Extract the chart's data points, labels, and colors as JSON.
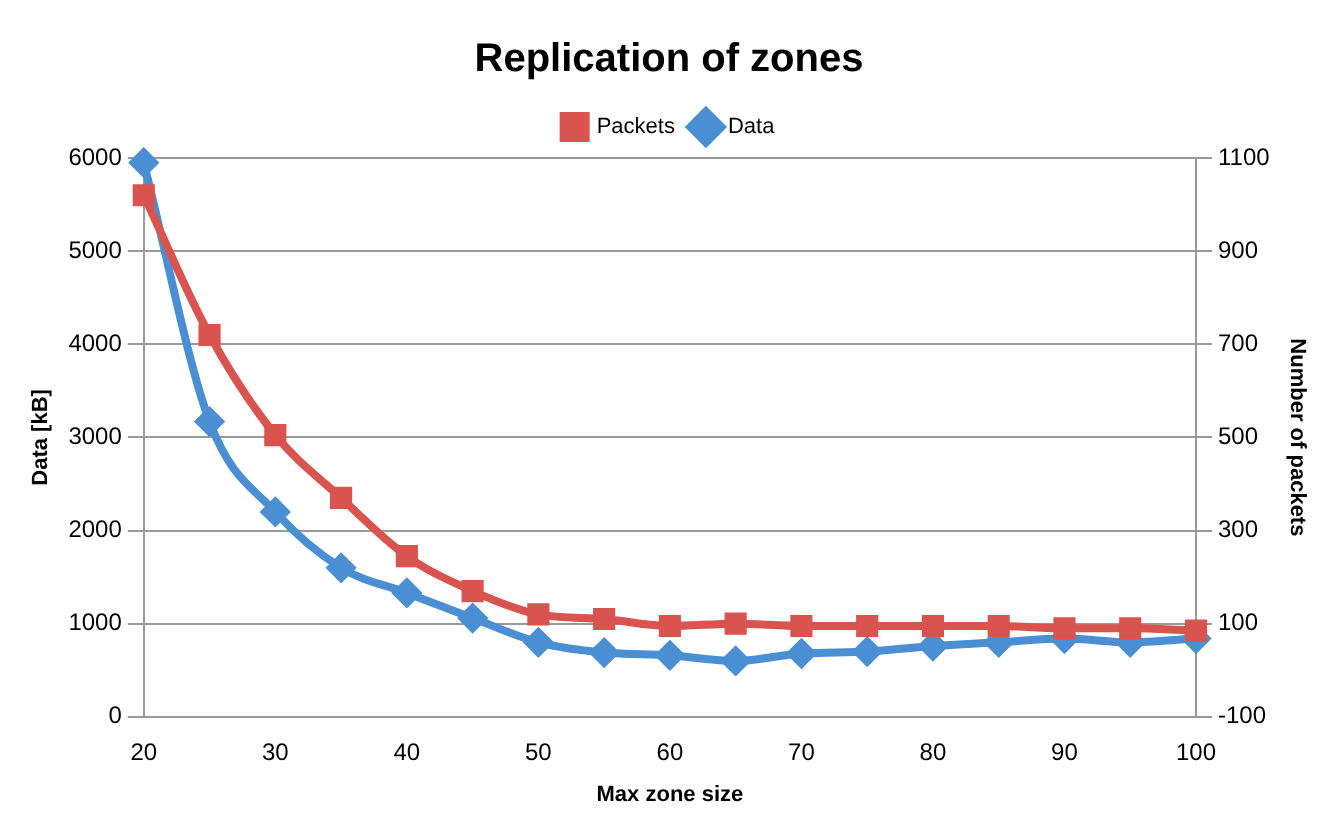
{
  "chart_data": {
    "type": "line",
    "title": "Replication of zones",
    "xlabel": "Max zone size",
    "ylabel": "Data [kB]",
    "y2label": "Number of packets",
    "x": [
      20,
      25,
      30,
      35,
      40,
      45,
      50,
      55,
      60,
      65,
      70,
      75,
      80,
      85,
      90,
      95,
      100
    ],
    "xlim": [
      20,
      100
    ],
    "xticks": [
      20,
      30,
      40,
      50,
      60,
      70,
      80,
      90,
      100
    ],
    "ylim": [
      0,
      6000
    ],
    "yticks": [
      0,
      1000,
      2000,
      3000,
      4000,
      5000,
      6000
    ],
    "y2lim": [
      -100,
      1100
    ],
    "y2ticks": [
      -100,
      100,
      300,
      500,
      700,
      900,
      1100
    ],
    "grid": "y",
    "legend": "top",
    "series": [
      {
        "name": "Data",
        "color": "#4a8fd4",
        "marker": "diamond",
        "values": [
          5950,
          3170,
          2200,
          1600,
          1330,
          1060,
          800,
          690,
          660,
          600,
          680,
          700,
          760,
          800,
          840,
          800,
          840
        ]
      },
      {
        "name": "Packets",
        "color": "#d9534f",
        "marker": "square",
        "axis": "y2",
        "values": [
          1020,
          720,
          505,
          370,
          245,
          170,
          120,
          110,
          95,
          100,
          95,
          95,
          95,
          95,
          90,
          90,
          85
        ]
      }
    ]
  }
}
